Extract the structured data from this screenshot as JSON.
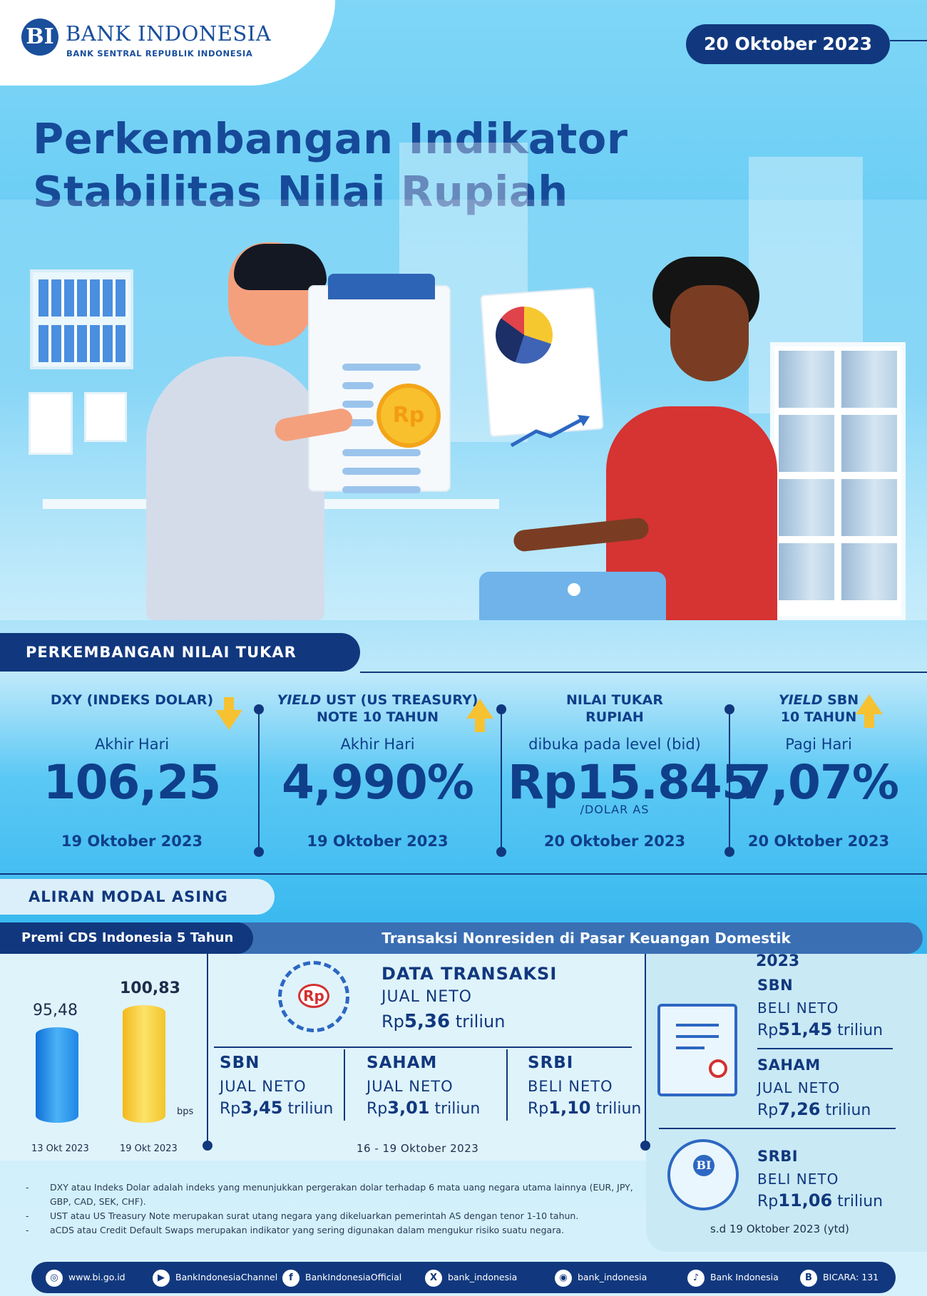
{
  "header": {
    "logo_mark": "BI",
    "logo_name": "BANK INDONESIA",
    "logo_subtitle": "BANK SENTRAL REPUBLIK INDONESIA",
    "date": "20 Oktober 2023",
    "title_line1": "Perkembangan Indikator",
    "title_line2": "Stabilitas Nilai Rupiah",
    "coin_label": "Rp"
  },
  "nilai_tukar": {
    "heading": "PERKEMBANGAN NILAI TUKAR",
    "indicators": [
      {
        "label_line1": "DXY (INDEKS DOLAR)",
        "label_line2": "",
        "period": "Akhir Hari",
        "value": "106,25",
        "unit": "",
        "date": "19 Oktober 2023",
        "trend": "down"
      },
      {
        "label_line1_italic": "YIELD",
        "label_line1": " UST (US TREASURY)",
        "label_line2": "NOTE  10 TAHUN",
        "period": "Akhir Hari",
        "value": "4,990%",
        "unit": "",
        "date": "19 Oktober 2023",
        "trend": "up"
      },
      {
        "label_line1": "NILAI TUKAR",
        "label_line2": "RUPIAH",
        "period": "dibuka pada level (bid)",
        "value": "Rp15.845",
        "unit": "/DOLAR AS",
        "date": "20 Oktober 2023",
        "trend": "none"
      },
      {
        "label_line1_italic": "YIELD",
        "label_line1": " SBN",
        "label_line2": "10 TAHUN",
        "period": "Pagi Hari",
        "value": "7,07%",
        "unit": "",
        "date": "20 Oktober 2023",
        "trend": "up"
      }
    ]
  },
  "aliran_modal": {
    "heading": "ALIRAN MODAL ASING",
    "cds": {
      "title": "Premi CDS Indonesia 5 Tahun",
      "unit": "bps",
      "bars": [
        {
          "date": "13 Okt 2023",
          "value": 95.48,
          "label": "95,48",
          "color": "#1e86e6"
        },
        {
          "date": "19 Okt 2023",
          "value": 100.83,
          "label": "100,83",
          "color": "#f3c52a"
        }
      ]
    },
    "transaksi": {
      "title": "Transaksi Nonresiden di Pasar Keuangan Domestik",
      "badge": "Rp",
      "data_title": "DATA  TRANSAKSI",
      "data_sub": "JUAL NETO",
      "data_prefix": "Rp",
      "data_value": "5,36",
      "data_suffix": " triliun",
      "items": [
        {
          "title": "SBN",
          "sub": "JUAL NETO",
          "prefix": "Rp",
          "value": "3,45",
          "suffix": " triliun"
        },
        {
          "title": "SAHAM",
          "sub": "JUAL NETO",
          "prefix": "Rp",
          "value": "3,01",
          "suffix": " triliun"
        },
        {
          "title": "SRBI",
          "sub": "BELI NETO",
          "prefix": "Rp",
          "value": "1,10",
          "suffix": " triliun"
        }
      ],
      "period": "16 - 19  Oktober 2023"
    },
    "ytd": {
      "year": "2023",
      "items": [
        {
          "title": "SBN",
          "sub": "BELI NETO",
          "prefix": "Rp",
          "value": "51,45",
          "suffix": " triliun"
        },
        {
          "title": "SAHAM",
          "sub": "JUAL NETO",
          "prefix": "Rp",
          "value": "7,26",
          "suffix": " triliun"
        },
        {
          "title": "SRBI",
          "sub": "BELI NETO",
          "prefix": "Rp",
          "value": "11,06",
          "suffix": " triliun"
        }
      ],
      "note": "s.d 19 Oktober 2023 (ytd)"
    }
  },
  "notes": [
    "DXY atau Indeks Dolar adalah indeks yang menunjukkan pergerakan dolar terhadap 6 mata uang negara utama lainnya (EUR, JPY, GBP, CAD, SEK, CHF).",
    "UST atau US Treasury Note merupakan surat utang negara yang dikeluarkan pemerintah AS dengan tenor 1-10 tahun.",
    "aCDS atau Credit Default Swaps merupakan indikator yang sering digunakan dalam mengukur risiko suatu negara."
  ],
  "footer": [
    {
      "icon": "globe-icon",
      "glyph": "◎",
      "label": "www.bi.go.id"
    },
    {
      "icon": "youtube-icon",
      "glyph": "▶",
      "label": "BankIndonesiaChannel"
    },
    {
      "icon": "facebook-icon",
      "glyph": "f",
      "label": "BankIndonesiaOfficial"
    },
    {
      "icon": "x-icon",
      "glyph": "X",
      "label": "bank_indonesia"
    },
    {
      "icon": "instagram-icon",
      "glyph": "◉",
      "label": "bank_indonesia"
    },
    {
      "icon": "tiktok-icon",
      "glyph": "♪",
      "label": "Bank Indonesia"
    },
    {
      "icon": "bicara-icon",
      "glyph": "B",
      "label": "BICARA: 131"
    }
  ]
}
